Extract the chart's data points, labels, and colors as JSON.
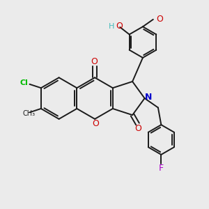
{
  "bg_color": "#ebebeb",
  "bond_color": "#1a1a1a",
  "cl_color": "#00bb00",
  "o_color": "#cc0000",
  "n_color": "#0000cc",
  "f_color": "#aa00cc",
  "ho_color": "#44bbbb",
  "lw": 1.4,
  "lw_double_inner": 1.2,
  "xlim": [
    0,
    10
  ],
  "ylim": [
    0,
    10
  ]
}
